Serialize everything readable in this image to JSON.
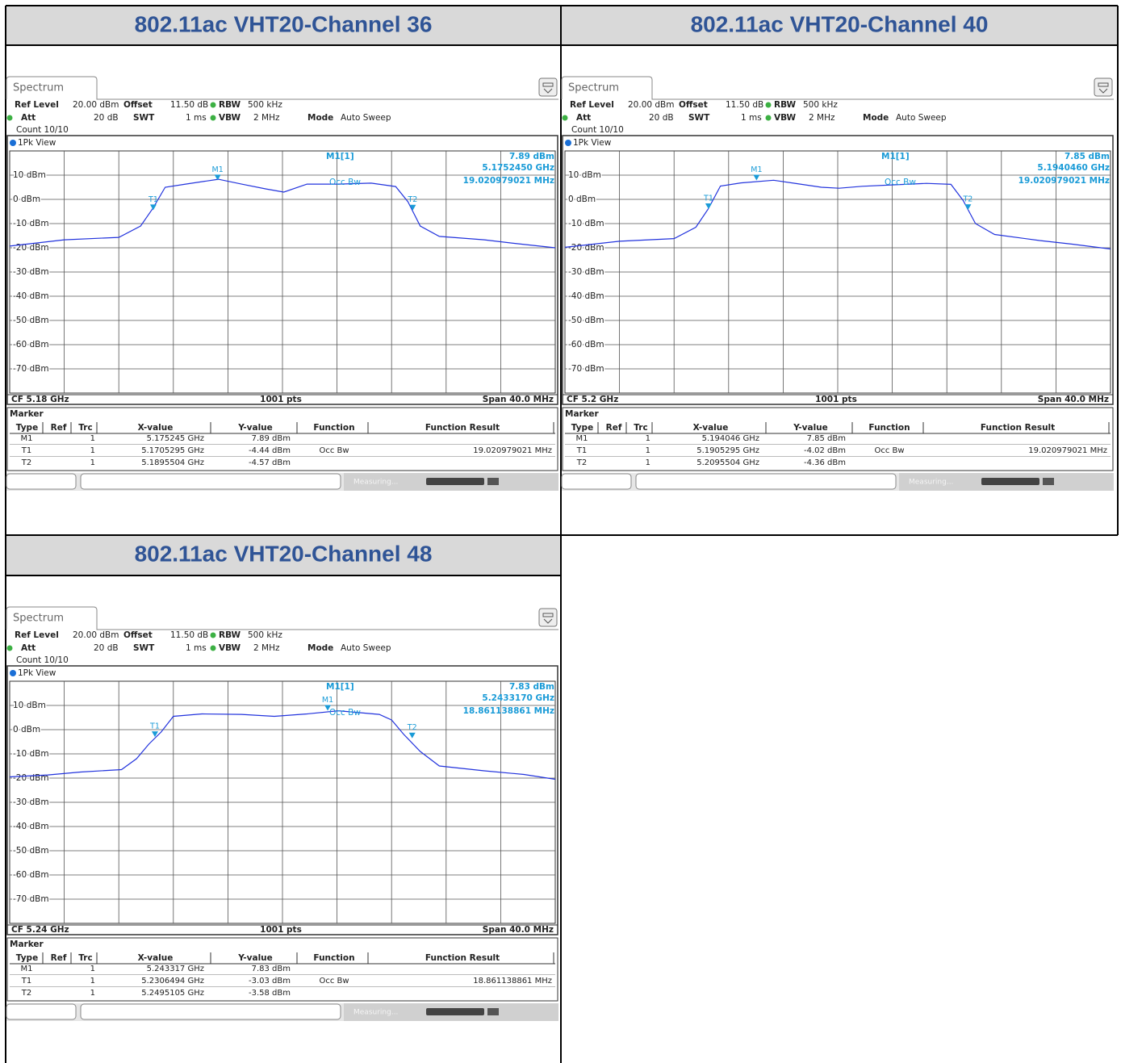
{
  "labels": {
    "ref_level": "Ref Level",
    "offset": "Offset",
    "rbw": "RBW",
    "att": "Att",
    "swt": "SWT",
    "vbw": "VBW",
    "mode": "Mode",
    "marker": "Marker",
    "columns": [
      "Type",
      "Ref",
      "Trc",
      "X-value",
      "Y-value",
      "Function",
      "Function Result"
    ],
    "status": "Measuring..."
  },
  "panels": [
    {
      "title": "802.11ac VHT20-Channel 36",
      "tab": "Spectrum",
      "ref_level": "20.00 dBm",
      "offset": "11.50 dB",
      "rbw": "500 kHz",
      "att": "20 dB",
      "swt": "1 ms",
      "vbw": "2 MHz",
      "mode": "Auto Sweep",
      "count": "Count 10/10",
      "view": "1Pk View",
      "marker_info": {
        "name": "M1[1]",
        "level": "7.89 dBm",
        "freq": "5.1752450 GHz",
        "bw": "19.020979021 MHz",
        "function": "Occ Bw"
      },
      "footer": {
        "cf": "CF 5.18 GHz",
        "pts": "1001 pts",
        "span": "Span 40.0 MHz"
      },
      "table": [
        {
          "type": "M1",
          "trc": "1",
          "x": "5.175245 GHz",
          "y": "7.89 dBm"
        },
        {
          "type": "T1",
          "trc": "1",
          "x": "5.1705295 GHz",
          "y": "-4.44 dBm",
          "function": "Occ Bw",
          "result": "19.020979021 MHz"
        },
        {
          "type": "T2",
          "trc": "1",
          "x": "5.1895504 GHz",
          "y": "-4.57 dBm"
        }
      ],
      "chart": {
        "type": "line",
        "color": "#2233dd",
        "xlim": [
          5.16,
          5.2
        ],
        "ylim": [
          -80,
          20
        ],
        "yticks": [
          {
            "value": 10,
            "label": "10 dBm"
          },
          {
            "value": 0,
            "label": "0 dBm"
          },
          {
            "value": -10,
            "label": "-10 dBm"
          },
          {
            "value": -20,
            "label": "-20 dBm"
          },
          {
            "value": -30,
            "label": "-30 dBm"
          },
          {
            "value": -40,
            "label": "-40 dBm"
          },
          {
            "value": -50,
            "label": "-50 dBm"
          },
          {
            "value": -60,
            "label": "-60 dBm"
          },
          {
            "value": -70,
            "label": "-70 dBm"
          }
        ],
        "x": [
          5.16,
          5.164,
          5.168,
          5.1696,
          5.1705,
          5.1714,
          5.1729,
          5.1753,
          5.177,
          5.1788,
          5.1801,
          5.1818,
          5.1841,
          5.1865,
          5.1883,
          5.1892,
          5.1901,
          5.1915,
          5.1948,
          5.1972,
          5.2
        ],
        "values": [
          -19.3,
          -16.7,
          -15.7,
          -11,
          -3.7,
          5,
          6.3,
          8.3,
          6.3,
          4.3,
          3,
          6.3,
          6.3,
          6.7,
          5.3,
          -1,
          -11,
          -15.3,
          -16.7,
          -18.3,
          -20
        ],
        "markers": [
          {
            "name": "M1",
            "x": 5.175245,
            "y": 7.89
          },
          {
            "name": "T1",
            "x": 5.1705295,
            "y": -4.44
          },
          {
            "name": "T2",
            "x": 5.1895504,
            "y": -4.57
          }
        ]
      }
    },
    {
      "title": "802.11ac VHT20-Channel 40",
      "tab": "Spectrum",
      "ref_level": "20.00 dBm",
      "offset": "11.50 dB",
      "rbw": "500 kHz",
      "att": "20 dB",
      "swt": "1 ms",
      "vbw": "2 MHz",
      "mode": "Auto Sweep",
      "count": "Count 10/10",
      "view": "1Pk View",
      "marker_info": {
        "name": "M1[1]",
        "level": "7.85 dBm",
        "freq": "5.1940460 GHz",
        "bw": "19.020979021 MHz",
        "function": "Occ Bw"
      },
      "footer": {
        "cf": "CF 5.2 GHz",
        "pts": "1001 pts",
        "span": "Span 40.0 MHz"
      },
      "table": [
        {
          "type": "M1",
          "trc": "1",
          "x": "5.194046 GHz",
          "y": "7.85 dBm"
        },
        {
          "type": "T1",
          "trc": "1",
          "x": "5.1905295 GHz",
          "y": "-4.02 dBm",
          "function": "Occ Bw",
          "result": "19.020979021 MHz"
        },
        {
          "type": "T2",
          "trc": "1",
          "x": "5.2095504 GHz",
          "y": "-4.36 dBm"
        }
      ],
      "chart": {
        "type": "line",
        "color": "#2233dd",
        "xlim": [
          5.18,
          5.22
        ],
        "ylim": [
          -80,
          20
        ],
        "yticks": [
          {
            "value": 10,
            "label": "10 dBm"
          },
          {
            "value": 0,
            "label": "0 dBm"
          },
          {
            "value": -10,
            "label": "-10 dBm"
          },
          {
            "value": -20,
            "label": "-20 dBm"
          },
          {
            "value": -30,
            "label": "-30 dBm"
          },
          {
            "value": -40,
            "label": "-40 dBm"
          },
          {
            "value": -50,
            "label": "-50 dBm"
          },
          {
            "value": -60,
            "label": "-60 dBm"
          },
          {
            "value": -70,
            "label": "-70 dBm"
          }
        ],
        "x": [
          5.18,
          5.184,
          5.188,
          5.1896,
          5.1905,
          5.1914,
          5.1929,
          5.1953,
          5.197,
          5.1988,
          5.2001,
          5.2018,
          5.2041,
          5.2065,
          5.2083,
          5.2092,
          5.2101,
          5.2115,
          5.2148,
          5.2172,
          5.22
        ],
        "values": [
          -19.8,
          -17.3,
          -16.2,
          -11.5,
          -4,
          5.5,
          6.8,
          7.9,
          6.5,
          5,
          4.6,
          5.4,
          6,
          6.6,
          6.2,
          -0.5,
          -10,
          -14.5,
          -17,
          -18.5,
          -20.5
        ],
        "markers": [
          {
            "name": "M1",
            "x": 5.194046,
            "y": 7.85
          },
          {
            "name": "T1",
            "x": 5.1905295,
            "y": -4.02
          },
          {
            "name": "T2",
            "x": 5.2095504,
            "y": -4.36
          }
        ]
      }
    },
    {
      "title": "802.11ac VHT20-Channel 48",
      "tab": "Spectrum",
      "ref_level": "20.00 dBm",
      "offset": "11.50 dB",
      "rbw": "500 kHz",
      "att": "20 dB",
      "swt": "1 ms",
      "vbw": "2 MHz",
      "mode": "Auto Sweep",
      "count": "Count 10/10",
      "view": "1Pk View",
      "marker_info": {
        "name": "M1[1]",
        "level": "7.83 dBm",
        "freq": "5.2433170 GHz",
        "bw": "18.861138861 MHz",
        "function": "Occ Bw"
      },
      "footer": {
        "cf": "CF 5.24 GHz",
        "pts": "1001 pts",
        "span": "Span 40.0 MHz"
      },
      "table": [
        {
          "type": "M1",
          "trc": "1",
          "x": "5.243317 GHz",
          "y": "7.83 dBm"
        },
        {
          "type": "T1",
          "trc": "1",
          "x": "5.2306494 GHz",
          "y": "-3.03 dBm",
          "function": "Occ Bw",
          "result": "18.861138861 MHz"
        },
        {
          "type": "T2",
          "trc": "1",
          "x": "5.2495105 GHz",
          "y": "-3.58 dBm"
        }
      ],
      "chart": {
        "type": "line",
        "color": "#2233dd",
        "xlim": [
          5.22,
          5.26
        ],
        "ylim": [
          -80,
          20
        ],
        "yticks": [
          {
            "value": 10,
            "label": "10 dBm"
          },
          {
            "value": 0,
            "label": "0 dBm"
          },
          {
            "value": -10,
            "label": "-10 dBm"
          },
          {
            "value": -20,
            "label": "-20 dBm"
          },
          {
            "value": -30,
            "label": "-30 dBm"
          },
          {
            "value": -40,
            "label": "-40 dBm"
          },
          {
            "value": -50,
            "label": "-50 dBm"
          },
          {
            "value": -60,
            "label": "-60 dBm"
          },
          {
            "value": -70,
            "label": "-70 dBm"
          }
        ],
        "x": [
          5.22,
          5.2228,
          5.2252,
          5.2282,
          5.2293,
          5.2302,
          5.2311,
          5.232,
          5.2341,
          5.237,
          5.2394,
          5.2418,
          5.2441,
          5.2471,
          5.248,
          5.2489,
          5.2501,
          5.2515,
          5.2548,
          5.2577,
          5.26
        ],
        "values": [
          -19.5,
          -18.7,
          -17.5,
          -16.5,
          -12,
          -6,
          -1,
          5.5,
          6.5,
          6.3,
          5.5,
          6.5,
          7.8,
          6.3,
          4,
          -2,
          -9,
          -15,
          -17,
          -18.5,
          -20.5
        ],
        "markers": [
          {
            "name": "M1",
            "x": 5.243317,
            "y": 7.83
          },
          {
            "name": "T1",
            "x": 5.2306494,
            "y": -3.03
          },
          {
            "name": "T2",
            "x": 5.2495105,
            "y": -3.58
          }
        ]
      }
    }
  ]
}
